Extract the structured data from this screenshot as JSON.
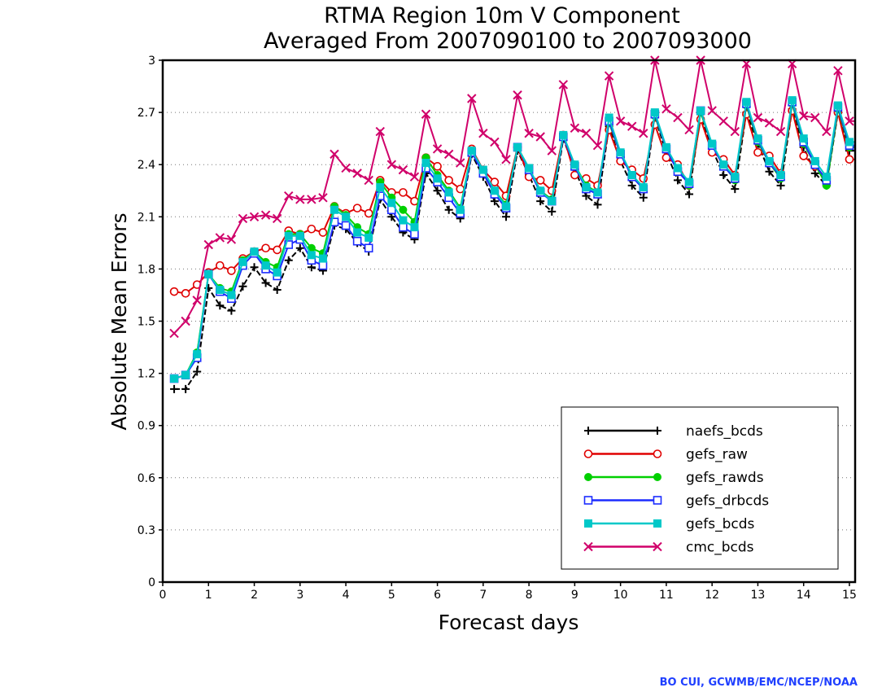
{
  "chart_data": {
    "type": "line",
    "title": "RTMA Region 10m V Component",
    "subtitle": "Averaged From 2007090100 to 2007093000",
    "xlabel": "Forecast days",
    "ylabel": "Absolute Mean Errors",
    "xlim": [
      0,
      15.125
    ],
    "ylim": [
      0,
      3
    ],
    "xticks": [
      "0",
      "1",
      "2",
      "3",
      "4",
      "5",
      "6",
      "7",
      "8",
      "9",
      "10",
      "11",
      "12",
      "13",
      "14",
      "15"
    ],
    "yticks": [
      "0",
      "0.3",
      "0.6",
      "0.9",
      "1.2",
      "1.5",
      "1.8",
      "2.1",
      "2.4",
      "2.7",
      "3"
    ],
    "grid": true,
    "legend_position": "lower-right",
    "x": [
      0.25,
      0.5,
      0.75,
      1.0,
      1.25,
      1.5,
      1.75,
      2.0,
      2.25,
      2.5,
      2.75,
      3.0,
      3.25,
      3.5,
      3.75,
      4.0,
      4.25,
      4.5,
      4.75,
      5.0,
      5.25,
      5.5,
      5.75,
      6.0,
      6.25,
      6.5,
      6.75,
      7.0,
      7.25,
      7.5,
      7.75,
      8.0,
      8.25,
      8.5,
      8.75,
      9.0,
      9.25,
      9.5,
      9.75,
      10.0,
      10.25,
      10.5,
      10.75,
      11.0,
      11.25,
      11.5,
      11.75,
      12.0,
      12.25,
      12.5,
      12.75,
      13.0,
      13.25,
      13.5,
      13.75,
      14.0,
      14.25,
      14.5,
      14.75,
      15.0,
      15.125
    ],
    "series": [
      {
        "name": "naefs_bcds",
        "color": "#000000",
        "marker": "plus",
        "values": [
          1.11,
          1.11,
          1.21,
          1.69,
          1.59,
          1.56,
          1.7,
          1.81,
          1.72,
          1.68,
          1.85,
          1.92,
          1.81,
          1.79,
          2.05,
          2.03,
          1.95,
          1.9,
          2.2,
          2.1,
          2.01,
          1.97,
          2.35,
          2.25,
          2.14,
          2.09,
          2.46,
          2.33,
          2.19,
          2.1,
          2.48,
          2.34,
          2.19,
          2.13,
          2.55,
          2.37,
          2.22,
          2.17,
          2.62,
          2.42,
          2.28,
          2.21,
          2.67,
          2.47,
          2.31,
          2.23,
          2.69,
          2.49,
          2.34,
          2.26,
          2.7,
          2.52,
          2.36,
          2.28,
          2.72,
          2.5,
          2.35,
          2.28,
          2.7,
          2.48,
          2.48
        ]
      },
      {
        "name": "gefs_raw",
        "color": "#e00000",
        "marker": "circle-open",
        "values": [
          1.67,
          1.66,
          1.71,
          1.78,
          1.82,
          1.79,
          1.86,
          1.9,
          1.92,
          1.91,
          2.02,
          2.0,
          2.03,
          2.01,
          2.16,
          2.12,
          2.15,
          2.12,
          2.31,
          2.24,
          2.24,
          2.19,
          2.44,
          2.39,
          2.31,
          2.26,
          2.49,
          2.37,
          2.3,
          2.22,
          2.5,
          2.33,
          2.31,
          2.25,
          2.57,
          2.34,
          2.32,
          2.28,
          2.6,
          2.42,
          2.37,
          2.32,
          2.63,
          2.44,
          2.4,
          2.28,
          2.66,
          2.47,
          2.43,
          2.34,
          2.69,
          2.47,
          2.45,
          2.35,
          2.71,
          2.45,
          2.39,
          2.32,
          2.7,
          2.43,
          2.43
        ]
      },
      {
        "name": "gefs_rawds",
        "color": "#00d000",
        "marker": "circle-filled",
        "values": [
          1.17,
          1.19,
          1.32,
          1.77,
          1.69,
          1.67,
          1.85,
          1.9,
          1.84,
          1.81,
          2.0,
          2.0,
          1.92,
          1.89,
          2.16,
          2.11,
          2.04,
          2.0,
          2.3,
          2.21,
          2.14,
          2.07,
          2.44,
          2.34,
          2.25,
          2.15,
          2.48,
          2.36,
          2.25,
          2.17,
          2.5,
          2.38,
          2.25,
          2.2,
          2.56,
          2.4,
          2.28,
          2.24,
          2.64,
          2.46,
          2.34,
          2.27,
          2.68,
          2.49,
          2.38,
          2.28,
          2.7,
          2.51,
          2.4,
          2.31,
          2.74,
          2.53,
          2.41,
          2.32,
          2.75,
          2.52,
          2.4,
          2.28,
          2.72,
          2.5,
          2.5
        ]
      },
      {
        "name": "gefs_drbcds",
        "color": "#1c2cff",
        "marker": "square-open",
        "values": [
          1.17,
          1.19,
          1.29,
          1.77,
          1.67,
          1.63,
          1.82,
          1.89,
          1.8,
          1.76,
          1.94,
          1.97,
          1.85,
          1.82,
          2.07,
          2.05,
          1.96,
          1.92,
          2.22,
          2.14,
          2.04,
          2.0,
          2.38,
          2.3,
          2.21,
          2.12,
          2.47,
          2.35,
          2.23,
          2.15,
          2.5,
          2.37,
          2.24,
          2.19,
          2.56,
          2.39,
          2.26,
          2.23,
          2.65,
          2.46,
          2.33,
          2.26,
          2.69,
          2.49,
          2.36,
          2.29,
          2.71,
          2.51,
          2.39,
          2.32,
          2.75,
          2.54,
          2.41,
          2.33,
          2.76,
          2.53,
          2.4,
          2.31,
          2.73,
          2.51,
          2.51
        ]
      },
      {
        "name": "gefs_bcds",
        "color": "#00c8c8",
        "marker": "square-filled",
        "values": [
          1.17,
          1.19,
          1.31,
          1.77,
          1.68,
          1.65,
          1.84,
          1.9,
          1.82,
          1.78,
          1.99,
          1.99,
          1.88,
          1.86,
          2.14,
          2.1,
          2.01,
          1.98,
          2.27,
          2.18,
          2.08,
          2.04,
          2.41,
          2.32,
          2.24,
          2.14,
          2.48,
          2.37,
          2.25,
          2.16,
          2.5,
          2.38,
          2.25,
          2.19,
          2.57,
          2.4,
          2.27,
          2.24,
          2.67,
          2.47,
          2.34,
          2.27,
          2.7,
          2.5,
          2.38,
          2.3,
          2.71,
          2.52,
          2.4,
          2.33,
          2.76,
          2.55,
          2.42,
          2.34,
          2.77,
          2.55,
          2.42,
          2.33,
          2.74,
          2.53,
          2.53
        ]
      },
      {
        "name": "cmc_bcds",
        "color": "#d0006a",
        "marker": "cross",
        "values": [
          1.43,
          1.5,
          1.62,
          1.94,
          1.98,
          1.97,
          2.09,
          2.1,
          2.11,
          2.09,
          2.22,
          2.2,
          2.2,
          2.21,
          2.46,
          2.38,
          2.35,
          2.31,
          2.59,
          2.4,
          2.37,
          2.33,
          2.69,
          2.49,
          2.46,
          2.41,
          2.78,
          2.58,
          2.53,
          2.43,
          2.8,
          2.58,
          2.56,
          2.48,
          2.86,
          2.61,
          2.58,
          2.51,
          2.91,
          2.65,
          2.62,
          2.58,
          3.0,
          2.72,
          2.67,
          2.6,
          3.0,
          2.71,
          2.65,
          2.59,
          2.98,
          2.67,
          2.64,
          2.59,
          2.98,
          2.68,
          2.67,
          2.59,
          2.94,
          2.65,
          2.65
        ]
      }
    ]
  },
  "credit": "BO CUI, GCWMB/EMC/NCEP/NOAA"
}
